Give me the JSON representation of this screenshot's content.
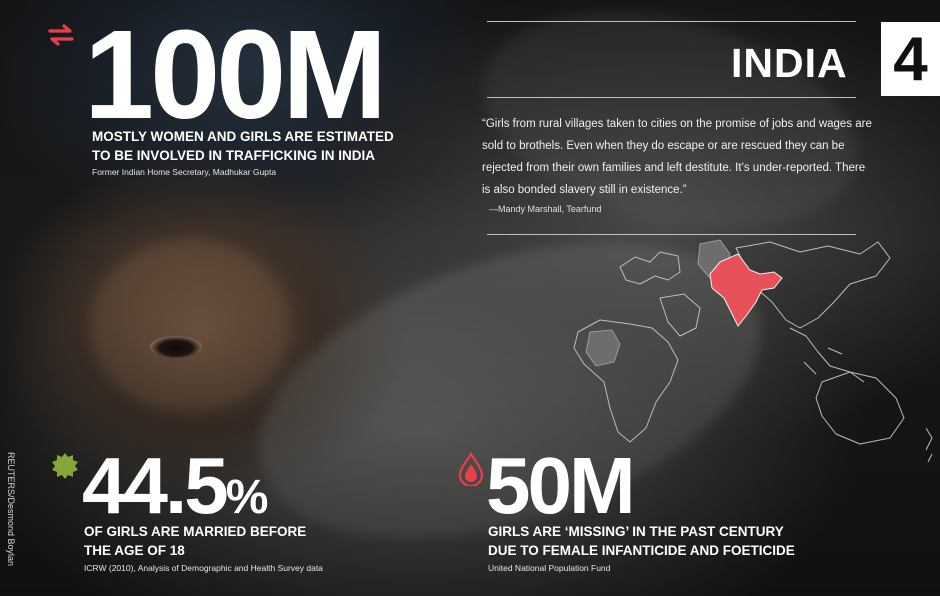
{
  "stat_top": {
    "number": "100M",
    "description_line1": "MOSTLY WOMEN AND GIRLS ARE ESTIMATED",
    "description_line2": "TO BE INVOLVED IN TRAFFICKING IN INDIA",
    "source": "Former Indian Home Secretary, Madhukar Gupta",
    "icon": "arrows-exchange-icon"
  },
  "header": {
    "country": "INDIA",
    "rank": "4"
  },
  "quote": {
    "text": "“Girls from rural villages taken to cities on the promise of jobs and wages are sold to brothels. Even when they do escape or are rescued they can be rejected from their own families and left destitute. It’s under-reported. There is also bonded slavery still in existence.”",
    "attribution": "—Mandy Marshall, Tearfund"
  },
  "stat_left": {
    "number": "44.5",
    "unit": "%",
    "description_line1": "OF GIRLS ARE MARRIED BEFORE",
    "description_line2": "THE AGE OF 18",
    "source": "ICRW (2010), Analysis of Demographic and Health Survey data",
    "icon": "seal-badge-icon"
  },
  "stat_right": {
    "number": "50M",
    "description_line1": "GIRLS ARE ‘MISSING’ IN THE PAST CENTURY",
    "description_line2": "DUE TO FEMALE INFANTICIDE AND FOETICIDE",
    "source": "United National Population Fund",
    "icon": "blood-drop-icon"
  },
  "photo_credit": "REUTERS/Desmond Boylan",
  "colors": {
    "accent_red": "#e8404b",
    "accent_green": "#86a63a",
    "india_fill": "#e8505a"
  }
}
